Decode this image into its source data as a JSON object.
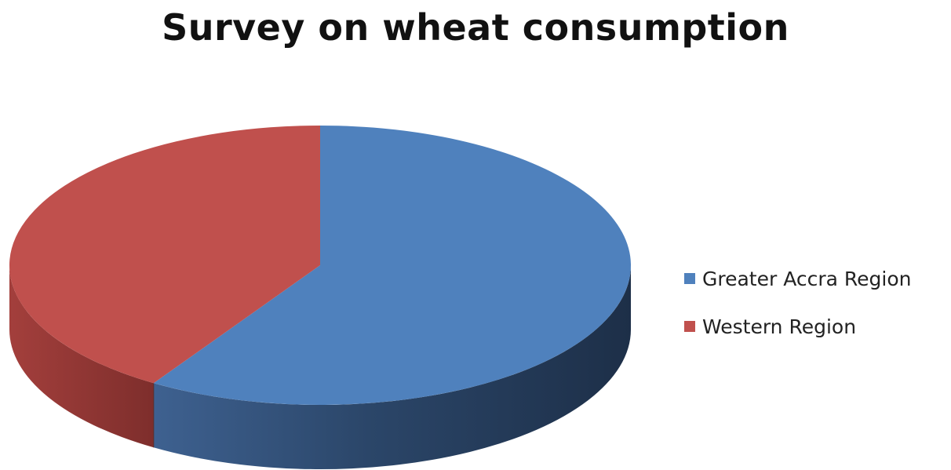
{
  "chart_data": {
    "type": "pie",
    "title": "Survey on wheat consumption",
    "categories": [
      "Greater Accra Region",
      "Western Region"
    ],
    "values": [
      59,
      41
    ],
    "colors": [
      "#4f81bd",
      "#c0504d"
    ],
    "legend_position": "right",
    "style": "3d"
  }
}
